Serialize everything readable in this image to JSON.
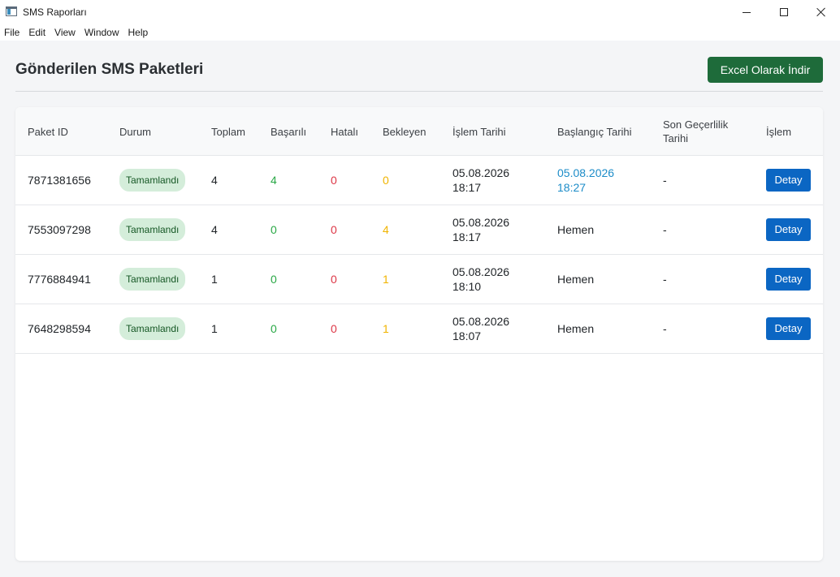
{
  "window": {
    "title": "SMS Raporları",
    "menu": [
      "File",
      "Edit",
      "View",
      "Window",
      "Help"
    ]
  },
  "page": {
    "title": "Gönderilen SMS Paketleri",
    "export_label": "Excel Olarak İndir"
  },
  "table": {
    "headers": {
      "id": "Paket ID",
      "status": "Durum",
      "total": "Toplam",
      "success": "Başarılı",
      "error": "Hatalı",
      "pending": "Bekleyen",
      "process_date": "İşlem Tarihi",
      "start_date": "Başlangıç Tarihi",
      "expiry_date": "Son Geçerlilik Tarihi",
      "action": "İşlem"
    },
    "rows": [
      {
        "id": "7871381656",
        "status": "Tamamlandı",
        "total": "4",
        "success": "4",
        "error": "0",
        "pending": "0",
        "process_date": "05.08.2026 18:17",
        "start_date": "05.08.2026 18:27",
        "expiry_date": "-",
        "action": "Detay"
      },
      {
        "id": "7553097298",
        "status": "Tamamlandı",
        "total": "4",
        "success": "0",
        "error": "0",
        "pending": "4",
        "process_date": "05.08.2026 18:17",
        "start_date": "Hemen",
        "expiry_date": "-",
        "action": "Detay"
      },
      {
        "id": "7776884941",
        "status": "Tamamlandı",
        "total": "1",
        "success": "0",
        "error": "0",
        "pending": "1",
        "process_date": "05.08.2026 18:10",
        "start_date": "Hemen",
        "expiry_date": "-",
        "action": "Detay"
      },
      {
        "id": "7648298594",
        "status": "Tamamlandı",
        "total": "1",
        "success": "0",
        "error": "0",
        "pending": "1",
        "process_date": "05.08.2026 18:07",
        "start_date": "Hemen",
        "expiry_date": "-",
        "action": "Detay"
      }
    ]
  },
  "colors": {
    "export_button": "#1e6b3a",
    "detail_button": "#0b66c3",
    "success": "#28a745",
    "error": "#dc3545",
    "pending": "#f0b400",
    "scheduled_start": "#1c8cc8",
    "badge_bg": "#d4edda"
  }
}
